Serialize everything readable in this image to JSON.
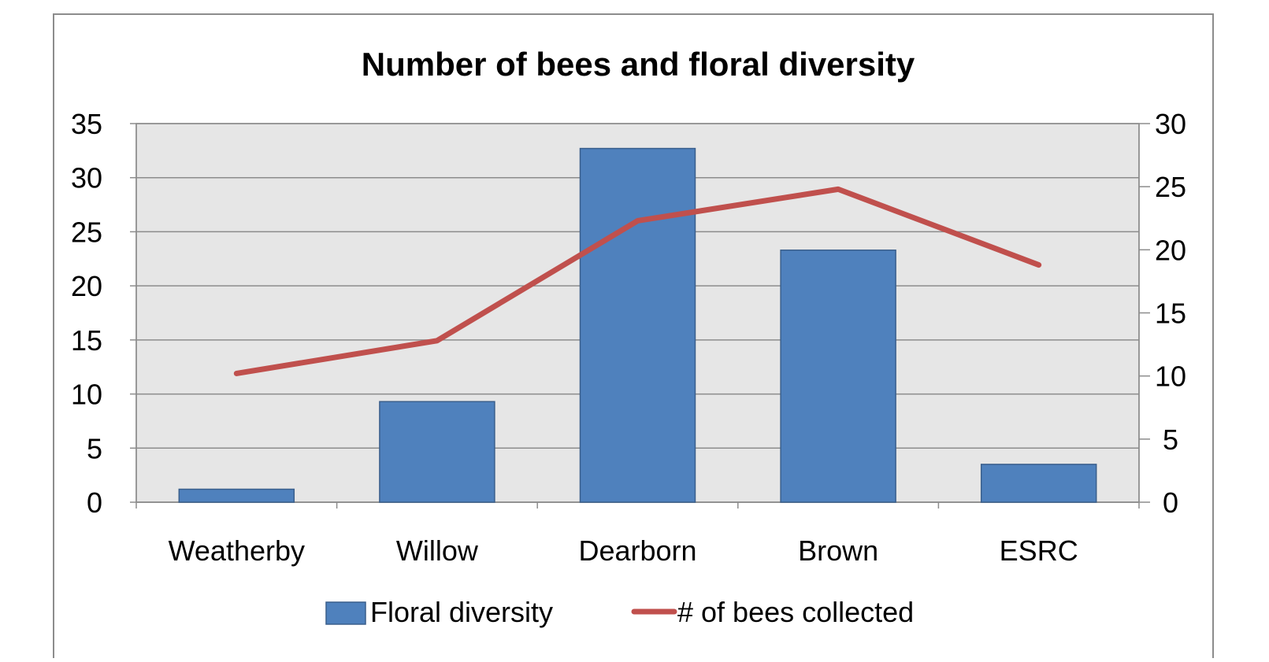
{
  "chart_data": {
    "type": "bar",
    "title": "Number of bees and floral diversity",
    "categories": [
      "Weatherby",
      "Willow",
      "Dearborn",
      "Brown",
      "ESRC"
    ],
    "series": [
      {
        "name": "Floral diversity",
        "type": "bar",
        "axis": "left",
        "color": "#4F81BD",
        "values": [
          1.2,
          9.3,
          32.7,
          23.3,
          3.5
        ]
      },
      {
        "name": "# of bees collected",
        "type": "line",
        "axis": "right",
        "color": "#C0504D",
        "values": [
          10.2,
          12.8,
          22.3,
          24.8,
          18.8
        ]
      }
    ],
    "y_left": {
      "min": 0,
      "max": 35,
      "ticks": [
        "0",
        "5",
        "10",
        "15",
        "20",
        "25",
        "30",
        "35"
      ]
    },
    "y_right": {
      "min": 0,
      "max": 30,
      "ticks": [
        "0",
        "5",
        "10",
        "15",
        "20",
        "25",
        "30"
      ]
    },
    "grid": true,
    "legend_position": "bottom",
    "plot_background": "#E6E6E6"
  }
}
